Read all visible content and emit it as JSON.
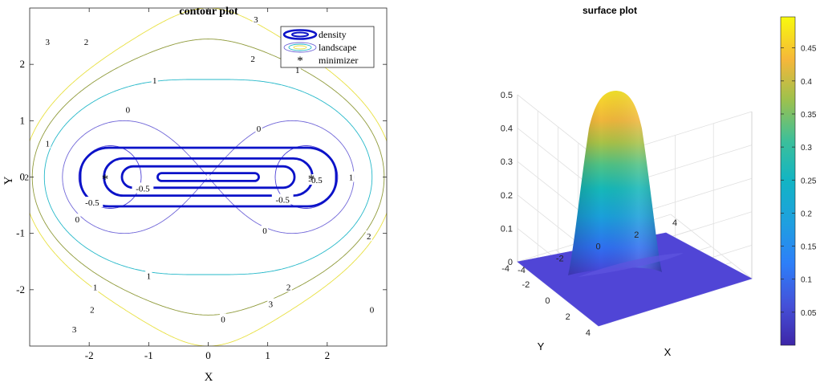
{
  "chart_data": [
    {
      "type": "contour",
      "title": "contour plot",
      "xlabel": "X",
      "ylabel": "Y",
      "xlim": [
        -3,
        3
      ],
      "ylim": [
        -3,
        3
      ],
      "xticks": [
        -2,
        -1,
        0,
        1,
        2
      ],
      "yticks": [
        -2,
        -1,
        0,
        1,
        2
      ],
      "grid": false,
      "legend_position": "top-right",
      "legend": [
        "density",
        "landscape",
        "minimizer"
      ],
      "landscape_levels": [
        -0.5,
        0,
        1,
        2,
        3
      ],
      "landscape_label_texts": [
        "3",
        "3",
        "2",
        "2",
        "1",
        "1",
        "0",
        "0",
        "-0.5",
        "-0.5",
        "-0.5",
        "-0.5",
        "0",
        "0",
        "1",
        "1",
        "2",
        "2",
        "1",
        "1",
        "2",
        "2",
        "3",
        "3",
        "0",
        "0"
      ],
      "minimizers": [
        {
          "x": -1.732,
          "y": 0
        },
        {
          "x": 1.732,
          "y": 0
        }
      ],
      "colors": {
        "density": "#0b12c8",
        "level_-0.5": "#4a3fd6",
        "level_0": "#7066d8",
        "level_1": "#25b8c9",
        "level_2": "#8f9a3a",
        "level_3": "#e8e040"
      }
    },
    {
      "type": "surface",
      "title": "surface plot",
      "xlabel": "X",
      "ylabel": "Y",
      "xlim": [
        -4,
        4
      ],
      "ylim": [
        -4,
        4
      ],
      "zlim": [
        0,
        0.5
      ],
      "xticks": [
        -4,
        -2,
        0,
        2,
        4
      ],
      "yticks": [
        -4,
        -2,
        0,
        2,
        4
      ],
      "zticks": [
        0,
        0.1,
        0.2,
        0.3,
        0.4,
        0.5
      ],
      "grid": true,
      "peak_value": 0.497,
      "colormap": "parula",
      "colorbar_ticks": [
        0.05,
        0.1,
        0.15,
        0.2,
        0.25,
        0.3,
        0.35,
        0.4,
        0.45
      ]
    }
  ]
}
